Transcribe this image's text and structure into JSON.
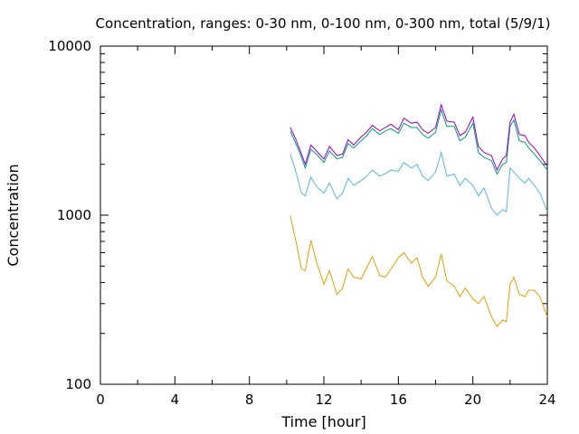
{
  "chart_data": {
    "type": "line",
    "title": "Concentration, ranges: 0-30 nm, 0-100 nm, 0-300 nm, total (5/9/1)",
    "xlabel": "Time [hour]",
    "ylabel": "Concentration",
    "xlim": [
      0,
      24
    ],
    "ylim": [
      100,
      10000
    ],
    "yscale": "log",
    "grid": false,
    "x_ticks": [
      0,
      4,
      8,
      12,
      16,
      20,
      24
    ],
    "x_tick_labels": [
      "0",
      "4",
      "8",
      "12",
      "16",
      "20",
      "24"
    ],
    "y_major_ticks": [
      100,
      1000,
      10000
    ],
    "y_tick_labels": [
      "100",
      "1000",
      "10000"
    ],
    "y_minor_ticks": [
      200,
      300,
      400,
      500,
      600,
      700,
      800,
      900,
      2000,
      3000,
      4000,
      5000,
      6000,
      7000,
      8000,
      9000
    ],
    "x": [
      10.2,
      10.5,
      10.8,
      11.0,
      11.3,
      11.6,
      12.0,
      12.3,
      12.7,
      13.0,
      13.3,
      13.6,
      14.0,
      14.3,
      14.6,
      15.0,
      15.3,
      15.6,
      16.0,
      16.3,
      16.7,
      17.0,
      17.3,
      17.6,
      18.0,
      18.3,
      18.6,
      19.0,
      19.3,
      19.6,
      20.0,
      20.3,
      20.6,
      21.0,
      21.3,
      21.6,
      21.8,
      22.0,
      22.2,
      22.5,
      22.8,
      23.0,
      23.3,
      23.6,
      24.0
    ],
    "series": [
      {
        "color": "#e69f00",
        "values": [
          990,
          700,
          480,
          470,
          710,
          530,
          390,
          470,
          340,
          370,
          480,
          430,
          420,
          490,
          570,
          440,
          430,
          480,
          560,
          600,
          520,
          560,
          430,
          380,
          430,
          590,
          410,
          380,
          330,
          370,
          320,
          300,
          330,
          250,
          220,
          240,
          235,
          390,
          430,
          340,
          330,
          360,
          360,
          330,
          250
        ]
      },
      {
        "color": "#56b4e9",
        "values": [
          2300,
          1800,
          1350,
          1300,
          1680,
          1480,
          1350,
          1550,
          1250,
          1350,
          1650,
          1500,
          1600,
          1700,
          1850,
          1700,
          1760,
          1850,
          1820,
          2050,
          1900,
          2000,
          1700,
          1600,
          1800,
          2350,
          1700,
          1750,
          1500,
          1650,
          1500,
          1300,
          1450,
          1100,
          1000,
          1080,
          1050,
          1900,
          1800,
          1650,
          1550,
          1650,
          1500,
          1350,
          1050
        ]
      },
      {
        "color": "#009e73",
        "values": [
          3150,
          2650,
          2200,
          1900,
          2450,
          2300,
          2050,
          2400,
          2150,
          2200,
          2650,
          2500,
          2750,
          2950,
          3250,
          3000,
          3150,
          3250,
          3050,
          3500,
          3300,
          3300,
          3000,
          2850,
          3100,
          4200,
          3350,
          3350,
          2750,
          2900,
          3500,
          2350,
          2200,
          2100,
          1750,
          2000,
          2050,
          3350,
          3650,
          2750,
          2700,
          2500,
          2300,
          2100,
          1850
        ]
      },
      {
        "color": "#9400d3",
        "values": [
          3300,
          2800,
          2300,
          2000,
          2600,
          2400,
          2150,
          2550,
          2250,
          2300,
          2800,
          2600,
          2900,
          3100,
          3400,
          3150,
          3300,
          3450,
          3200,
          3750,
          3500,
          3550,
          3200,
          3050,
          3300,
          4500,
          3600,
          3550,
          2950,
          3100,
          3800,
          2550,
          2350,
          2250,
          1850,
          2150,
          2250,
          3550,
          3950,
          3000,
          2950,
          2700,
          2500,
          2250,
          1950
        ]
      }
    ]
  }
}
